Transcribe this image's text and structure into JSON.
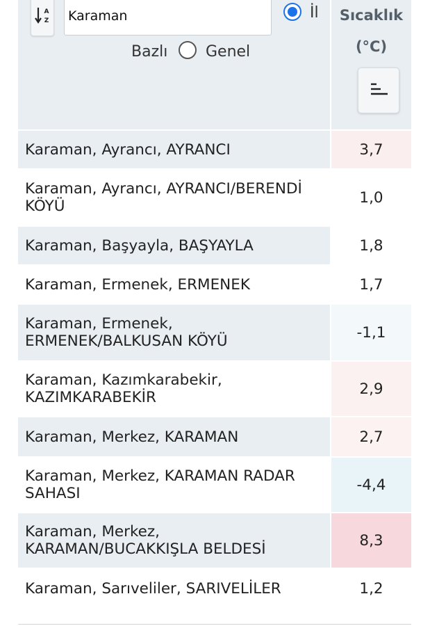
{
  "filter": {
    "search_value": "Karaman",
    "radio_il_label": "İl",
    "bazli_label": "Bazlı",
    "radio_genel_label": "Genel",
    "selected": "il"
  },
  "column": {
    "title_line1": "Sıcaklık",
    "title_line2": "(°C)"
  },
  "colors": {
    "header_bg": "#e9eef2",
    "radio_selected": "#1a73e8",
    "warm_light": "#fcf3f3",
    "warm_medium": "#fbeaea",
    "warm_strong": "#f6d7db",
    "cold_light": "#f2f8fb",
    "cold_medium": "#e8f4f8"
  },
  "rows": [
    {
      "name": "Karaman, Ayrancı, AYRANCI",
      "value": "3,7",
      "color": "#fbeeee"
    },
    {
      "name": "Karaman, Ayrancı, AYRANCI/BERENDİ KÖYÜ",
      "value": "1,0",
      "color": "#ffffff"
    },
    {
      "name": "Karaman, Başyayla, BAŞYAYLA",
      "value": "1,8",
      "color": "#ffffff"
    },
    {
      "name": "Karaman, Ermenek, ERMENEK",
      "value": "1,7",
      "color": "#ffffff"
    },
    {
      "name": "Karaman, Ermenek, ERMENEK/BALKUSAN KÖYÜ",
      "value": "-1,1",
      "color": "#f3f8fb"
    },
    {
      "name": "Karaman, Kazımkarabekir, KAZIMKARABEKİR",
      "value": "2,9",
      "color": "#fcf1f1"
    },
    {
      "name": "Karaman, Merkez, KARAMAN",
      "value": "2,7",
      "color": "#fcf2f2"
    },
    {
      "name": "Karaman, Merkez, KARAMAN RADAR SAHASI",
      "value": "-4,4",
      "color": "#e9f4f8"
    },
    {
      "name": "Karaman, Merkez, KARAMAN/BUCAKKIŞLA BELDESİ",
      "value": "8,3",
      "color": "#f7d8dc"
    },
    {
      "name": "Karaman, Sarıveliler, SARIVELİLER",
      "value": "1,2",
      "color": "#ffffff"
    }
  ]
}
